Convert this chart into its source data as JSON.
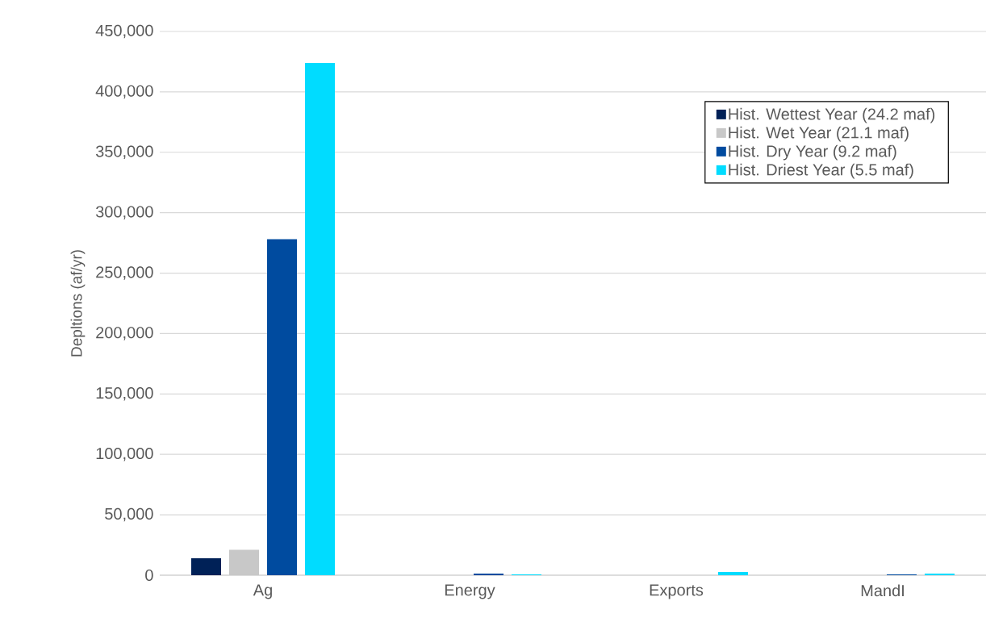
{
  "chart_data": {
    "type": "bar",
    "ylabel": "Depltions (af/yr)",
    "categories": [
      "Ag",
      "Energy",
      "Exports",
      "MandI"
    ],
    "series": [
      {
        "name": "Hist. Wettest Year (24.2 maf)",
        "color": "#002157",
        "values": [
          14000,
          0,
          0,
          0
        ]
      },
      {
        "name": "Hist. Wet Year (21.1 maf)",
        "color": "#c8c8c8",
        "values": [
          21000,
          0,
          0,
          0
        ]
      },
      {
        "name": "Hist. Dry Year (9.2 maf)",
        "color": "#004b9f",
        "values": [
          278000,
          1300,
          0,
          700
        ]
      },
      {
        "name": "Hist. Driest Year (5.5 maf)",
        "color": "#00dcff",
        "values": [
          424000,
          700,
          2700,
          1300
        ]
      }
    ],
    "ylim": [
      0,
      450000
    ],
    "yticks": [
      0,
      {
        "value": 50000,
        "label": "50,000"
      },
      {
        "value": 100000,
        "label": "100,000"
      },
      {
        "value": 150000,
        "label": "150,000"
      },
      {
        "value": 200000,
        "label": "200,000"
      },
      {
        "value": 250000,
        "label": "250,000"
      },
      {
        "value": 300000,
        "label": "300,000"
      },
      {
        "value": 350000,
        "label": "350,000"
      },
      {
        "value": 400000,
        "label": "400,000"
      },
      {
        "value": 450000,
        "label": "450,000"
      }
    ],
    "grid": "y",
    "legend": "top right"
  }
}
